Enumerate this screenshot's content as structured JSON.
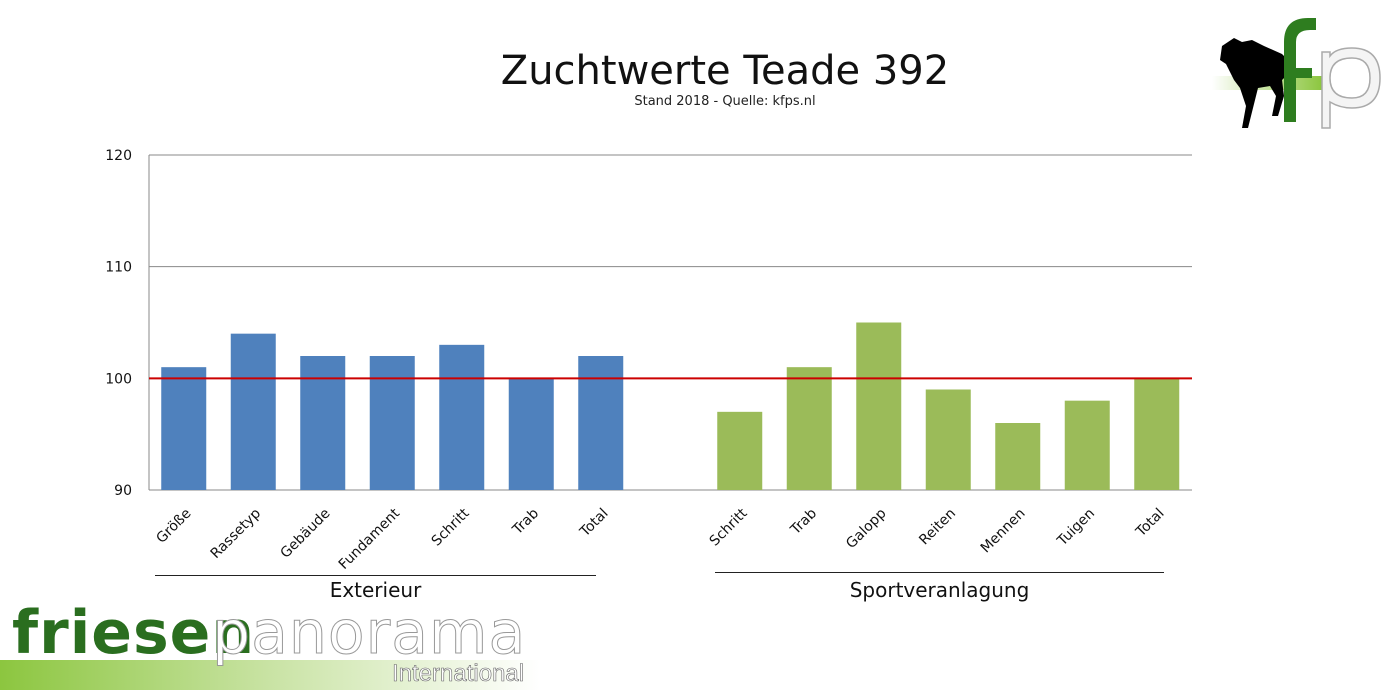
{
  "chart_data": {
    "type": "bar",
    "title": "Zuchtwerte Teade 392",
    "subtitle": "Stand 2018 - Quelle: kfps.nl",
    "ylim": [
      90,
      120
    ],
    "yticks": [
      90,
      100,
      110,
      120
    ],
    "reference_line": 100,
    "grid": true,
    "groups": [
      {
        "name": "Exterieur",
        "color": "#4f81bd",
        "categories": [
          "Größe",
          "Rassetyp",
          "Gebäude",
          "Fundament",
          "Schritt",
          "Trab",
          "Total"
        ],
        "values": [
          101,
          104,
          102,
          102,
          103,
          100,
          102
        ]
      },
      {
        "name": "Sportveranlagung",
        "color": "#9bbb59",
        "categories": [
          "Schritt",
          "Trab",
          "Galopp",
          "Reiten",
          "Mennen",
          "Tuigen",
          "Total"
        ],
        "values": [
          97,
          101,
          105,
          99,
          96,
          98,
          100
        ]
      }
    ],
    "reference_color": "#cc0000"
  },
  "branding": {
    "corner_logo": "fp",
    "footer_word1": "friesen",
    "footer_word2": "panorama",
    "footer_word3": "International"
  }
}
